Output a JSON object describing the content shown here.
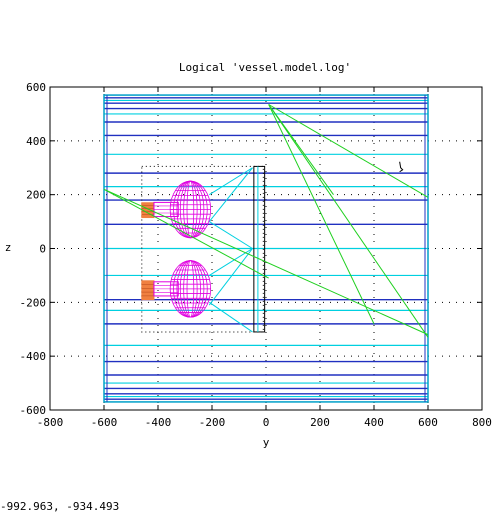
{
  "window": {
    "coordinate_readout": "-992.963, -934.493"
  },
  "chart_data": {
    "type": "wireframe-view",
    "title": "Logical 'vessel.model.log'",
    "xlabel": "y",
    "ylabel": "z",
    "xlim": [
      -800,
      800
    ],
    "ylim": [
      -600,
      600
    ],
    "xticks": [
      "-800",
      "-600",
      "-400",
      "-200",
      "0",
      "200",
      "400",
      "600",
      "800"
    ],
    "yticks": [
      "-600",
      "-400",
      "-200",
      "0",
      "200",
      "400",
      "600"
    ],
    "grid": true,
    "grid_style": "dotted",
    "colors": {
      "outline": "#00a0c8",
      "blue_layer": "#2030c0",
      "cyan_layer": "#00d0e0",
      "magenta_bulb": "#e000e0",
      "orange_stub": "#f08040",
      "green_ray": "#20d020",
      "black_frame": "#000000"
    },
    "vessel": {
      "y_range": [
        -600,
        600
      ],
      "z_range": [
        -570,
        570
      ],
      "blue_layers_z": [
        560,
        540,
        520,
        470,
        420,
        280,
        180,
        90,
        -190,
        -280,
        -420,
        -470,
        -520,
        -540,
        -560
      ],
      "cyan_layers_z": [
        550,
        500,
        350,
        230,
        0,
        -100,
        -230,
        -360,
        -500,
        -550
      ]
    },
    "inner_frame": {
      "dotted_box": {
        "y": [
          -460,
          -10
        ],
        "z": [
          -310,
          305
        ]
      },
      "solid_box": {
        "y": [
          -45,
          -5
        ],
        "z": [
          -310,
          305
        ]
      }
    },
    "bulbs": [
      {
        "center_y": -280,
        "center_z": 145,
        "ry": 75,
        "rz": 105
      },
      {
        "center_y": -280,
        "center_z": -150,
        "ry": 75,
        "rz": 105
      }
    ],
    "stubs": [
      {
        "y": [
          -460,
          -415
        ],
        "z": [
          115,
          170
        ]
      },
      {
        "y": [
          -460,
          -415
        ],
        "z": [
          -190,
          -120
        ]
      }
    ],
    "cyan_rays": [
      [
        [
          -210,
          200
        ],
        [
          -50,
          300
        ]
      ],
      [
        [
          -210,
          100
        ],
        [
          -50,
          300
        ]
      ],
      [
        [
          -210,
          -100
        ],
        [
          -50,
          0
        ]
      ],
      [
        [
          -210,
          -210
        ],
        [
          -50,
          0
        ]
      ],
      [
        [
          -210,
          -200
        ],
        [
          -50,
          -310
        ]
      ],
      [
        [
          -210,
          100
        ],
        [
          -50,
          0
        ]
      ]
    ],
    "green_rays": [
      [
        [
          -600,
          220
        ],
        [
          -10,
          -100
        ]
      ],
      [
        [
          -10,
          -100
        ],
        [
          10,
          -110
        ]
      ],
      [
        [
          10,
          535
        ],
        [
          600,
          190
        ]
      ],
      [
        [
          10,
          535
        ],
        [
          400,
          -280
        ]
      ],
      [
        [
          10,
          535
        ],
        [
          600,
          -330
        ]
      ],
      [
        [
          10,
          535
        ],
        [
          250,
          200
        ]
      ],
      [
        [
          -600,
          220
        ],
        [
          600,
          -320
        ]
      ]
    ],
    "marker": {
      "y": 495,
      "z": 300
    }
  }
}
